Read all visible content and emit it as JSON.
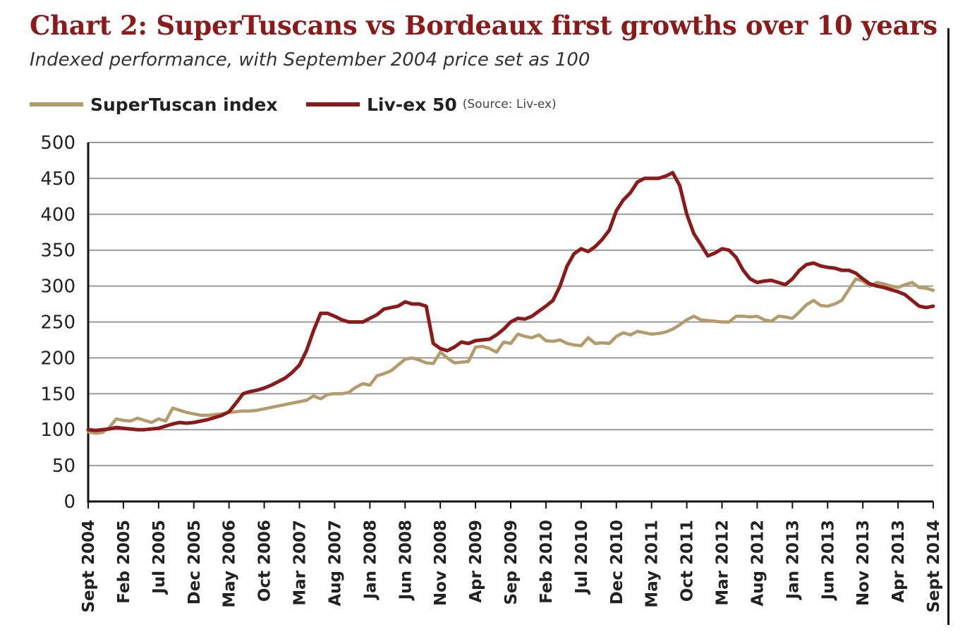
{
  "chart_data": {
    "type": "line",
    "title": "Chart 2: SuperTuscans vs Bordeaux first growths over 10 years",
    "subtitle": "Indexed performance, with September 2004 price set as 100",
    "ylim": [
      0,
      500
    ],
    "yticks": [
      0,
      50,
      100,
      150,
      200,
      250,
      300,
      350,
      400,
      450,
      500
    ],
    "grid": "horizontal",
    "legend_placement": "top-left",
    "source_note": "(Source: Liv-ex)",
    "x_range": [
      0,
      120
    ],
    "x_ticks": [
      {
        "label": "Sept 2004",
        "x": 0
      },
      {
        "label": "Feb 2005",
        "x": 5
      },
      {
        "label": "Jul 2005",
        "x": 10
      },
      {
        "label": "Dec 2005",
        "x": 15
      },
      {
        "label": "May 2006",
        "x": 20
      },
      {
        "label": "Oct 2006",
        "x": 25
      },
      {
        "label": "Mar 2007",
        "x": 30
      },
      {
        "label": "Aug 2007",
        "x": 35
      },
      {
        "label": "Jan 2008",
        "x": 40
      },
      {
        "label": "Jun 2008",
        "x": 45
      },
      {
        "label": "Nov 2008",
        "x": 50
      },
      {
        "label": "Apr 2009",
        "x": 55
      },
      {
        "label": "Sep 2009",
        "x": 60
      },
      {
        "label": "Feb 2010",
        "x": 65
      },
      {
        "label": "Jul 2010",
        "x": 70
      },
      {
        "label": "Dec 2010",
        "x": 75
      },
      {
        "label": "May 2011",
        "x": 80
      },
      {
        "label": "Oct 2011",
        "x": 85
      },
      {
        "label": "Mar 2012",
        "x": 90
      },
      {
        "label": "Aug 2012",
        "x": 95
      },
      {
        "label": "Jan 2013",
        "x": 100
      },
      {
        "label": "Jun 2013",
        "x": 105
      },
      {
        "label": "Nov 2013",
        "x": 110
      },
      {
        "label": "Apr 2013",
        "x": 115
      },
      {
        "label": "Sept 2014",
        "x": 120
      }
    ],
    "series": [
      {
        "name": "SuperTuscan index",
        "color": "#b39b6b",
        "points": [
          [
            0,
            97
          ],
          [
            1,
            95
          ],
          [
            2,
            96
          ],
          [
            3,
            103
          ],
          [
            4,
            115
          ],
          [
            5,
            113
          ],
          [
            6,
            112
          ],
          [
            7,
            116
          ],
          [
            8,
            113
          ],
          [
            9,
            110
          ],
          [
            10,
            115
          ],
          [
            11,
            112
          ],
          [
            12,
            130
          ],
          [
            13,
            127
          ],
          [
            14,
            124
          ],
          [
            15,
            122
          ],
          [
            16,
            120
          ],
          [
            17,
            120
          ],
          [
            18,
            121
          ],
          [
            19,
            122
          ],
          [
            20,
            124
          ],
          [
            21,
            125
          ],
          [
            22,
            126
          ],
          [
            23,
            126
          ],
          [
            24,
            127
          ],
          [
            25,
            129
          ],
          [
            26,
            131
          ],
          [
            27,
            133
          ],
          [
            28,
            135
          ],
          [
            29,
            137
          ],
          [
            30,
            139
          ],
          [
            31,
            141
          ],
          [
            32,
            147
          ],
          [
            33,
            143
          ],
          [
            34,
            149
          ],
          [
            35,
            150
          ],
          [
            36,
            150
          ],
          [
            37,
            152
          ],
          [
            38,
            159
          ],
          [
            39,
            164
          ],
          [
            40,
            162
          ],
          [
            41,
            175
          ],
          [
            42,
            178
          ],
          [
            43,
            182
          ],
          [
            44,
            190
          ],
          [
            45,
            198
          ],
          [
            46,
            200
          ],
          [
            47,
            197
          ],
          [
            48,
            193
          ],
          [
            49,
            192
          ],
          [
            50,
            208
          ],
          [
            51,
            200
          ],
          [
            52,
            193
          ],
          [
            53,
            194
          ],
          [
            54,
            195
          ],
          [
            55,
            215
          ],
          [
            56,
            216
          ],
          [
            57,
            213
          ],
          [
            58,
            208
          ],
          [
            59,
            222
          ],
          [
            60,
            220
          ],
          [
            61,
            233
          ],
          [
            62,
            230
          ],
          [
            63,
            228
          ],
          [
            64,
            232
          ],
          [
            65,
            224
          ],
          [
            66,
            223
          ],
          [
            67,
            225
          ],
          [
            68,
            220
          ],
          [
            69,
            218
          ],
          [
            70,
            217
          ],
          [
            71,
            228
          ],
          [
            72,
            220
          ],
          [
            73,
            221
          ],
          [
            74,
            220
          ],
          [
            75,
            230
          ],
          [
            76,
            235
          ],
          [
            77,
            232
          ],
          [
            78,
            237
          ],
          [
            79,
            235
          ],
          [
            80,
            233
          ],
          [
            81,
            234
          ],
          [
            82,
            236
          ],
          [
            83,
            240
          ],
          [
            84,
            246
          ],
          [
            85,
            253
          ],
          [
            86,
            258
          ],
          [
            87,
            253
          ],
          [
            88,
            252
          ],
          [
            89,
            251
          ],
          [
            90,
            250
          ],
          [
            91,
            250
          ],
          [
            92,
            258
          ],
          [
            93,
            258
          ],
          [
            94,
            257
          ],
          [
            95,
            258
          ],
          [
            96,
            253
          ],
          [
            97,
            251
          ],
          [
            98,
            258
          ],
          [
            99,
            257
          ],
          [
            100,
            255
          ],
          [
            101,
            264
          ],
          [
            102,
            274
          ],
          [
            103,
            280
          ],
          [
            104,
            273
          ],
          [
            105,
            272
          ],
          [
            106,
            275
          ],
          [
            107,
            280
          ],
          [
            108,
            295
          ],
          [
            109,
            310
          ],
          [
            110,
            307
          ],
          [
            111,
            300
          ],
          [
            112,
            305
          ],
          [
            113,
            303
          ],
          [
            114,
            300
          ],
          [
            115,
            298
          ],
          [
            116,
            302
          ],
          [
            117,
            305
          ],
          [
            118,
            298
          ],
          [
            119,
            297
          ],
          [
            120,
            294
          ]
        ]
      },
      {
        "name": "Liv-ex 50",
        "color": "#8b1a1a",
        "points": [
          [
            0,
            100
          ],
          [
            1,
            99
          ],
          [
            2,
            100
          ],
          [
            3,
            101
          ],
          [
            4,
            103
          ],
          [
            5,
            102
          ],
          [
            6,
            101
          ],
          [
            7,
            100
          ],
          [
            8,
            100
          ],
          [
            9,
            101
          ],
          [
            10,
            102
          ],
          [
            11,
            105
          ],
          [
            12,
            108
          ],
          [
            13,
            110
          ],
          [
            14,
            109
          ],
          [
            15,
            110
          ],
          [
            16,
            112
          ],
          [
            17,
            114
          ],
          [
            18,
            117
          ],
          [
            19,
            120
          ],
          [
            20,
            125
          ],
          [
            21,
            137
          ],
          [
            22,
            150
          ],
          [
            23,
            153
          ],
          [
            24,
            155
          ],
          [
            25,
            158
          ],
          [
            26,
            162
          ],
          [
            27,
            167
          ],
          [
            28,
            172
          ],
          [
            29,
            180
          ],
          [
            30,
            190
          ],
          [
            31,
            210
          ],
          [
            32,
            238
          ],
          [
            33,
            262
          ],
          [
            34,
            262
          ],
          [
            35,
            258
          ],
          [
            36,
            253
          ],
          [
            37,
            250
          ],
          [
            38,
            250
          ],
          [
            39,
            250
          ],
          [
            40,
            255
          ],
          [
            41,
            260
          ],
          [
            42,
            268
          ],
          [
            43,
            270
          ],
          [
            44,
            272
          ],
          [
            45,
            278
          ],
          [
            46,
            275
          ],
          [
            47,
            275
          ],
          [
            48,
            272
          ],
          [
            49,
            220
          ],
          [
            50,
            213
          ],
          [
            51,
            210
          ],
          [
            52,
            215
          ],
          [
            53,
            222
          ],
          [
            54,
            220
          ],
          [
            55,
            224
          ],
          [
            56,
            225
          ],
          [
            57,
            226
          ],
          [
            58,
            232
          ],
          [
            59,
            240
          ],
          [
            60,
            250
          ],
          [
            61,
            255
          ],
          [
            62,
            254
          ],
          [
            63,
            258
          ],
          [
            64,
            265
          ],
          [
            65,
            272
          ],
          [
            66,
            280
          ],
          [
            67,
            300
          ],
          [
            68,
            328
          ],
          [
            69,
            345
          ],
          [
            70,
            352
          ],
          [
            71,
            348
          ],
          [
            72,
            355
          ],
          [
            73,
            365
          ],
          [
            74,
            378
          ],
          [
            75,
            405
          ],
          [
            76,
            420
          ],
          [
            77,
            430
          ],
          [
            78,
            445
          ],
          [
            79,
            450
          ],
          [
            80,
            450
          ],
          [
            81,
            450
          ],
          [
            82,
            453
          ],
          [
            83,
            458
          ],
          [
            84,
            440
          ],
          [
            85,
            400
          ],
          [
            86,
            373
          ],
          [
            87,
            358
          ],
          [
            88,
            342
          ],
          [
            89,
            346
          ],
          [
            90,
            352
          ],
          [
            91,
            350
          ],
          [
            92,
            340
          ],
          [
            93,
            322
          ],
          [
            94,
            310
          ],
          [
            95,
            305
          ],
          [
            96,
            307
          ],
          [
            97,
            308
          ],
          [
            98,
            305
          ],
          [
            99,
            302
          ],
          [
            100,
            310
          ],
          [
            101,
            322
          ],
          [
            102,
            330
          ],
          [
            103,
            332
          ],
          [
            104,
            328
          ],
          [
            105,
            326
          ],
          [
            106,
            325
          ],
          [
            107,
            322
          ],
          [
            108,
            322
          ],
          [
            109,
            318
          ],
          [
            110,
            310
          ],
          [
            111,
            303
          ],
          [
            112,
            300
          ],
          [
            113,
            298
          ],
          [
            114,
            295
          ],
          [
            115,
            292
          ],
          [
            116,
            288
          ],
          [
            117,
            280
          ],
          [
            118,
            272
          ],
          [
            119,
            270
          ],
          [
            120,
            272
          ]
        ]
      }
    ]
  }
}
